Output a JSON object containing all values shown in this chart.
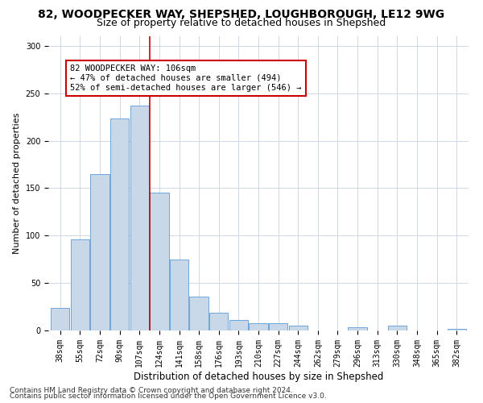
{
  "title1": "82, WOODPECKER WAY, SHEPSHED, LOUGHBOROUGH, LE12 9WG",
  "title2": "Size of property relative to detached houses in Shepshed",
  "xlabel": "Distribution of detached houses by size in Shepshed",
  "ylabel": "Number of detached properties",
  "footnote1": "Contains HM Land Registry data © Crown copyright and database right 2024.",
  "footnote2": "Contains public sector information licensed under the Open Government Licence v3.0.",
  "bin_labels": [
    "38sqm",
    "55sqm",
    "72sqm",
    "90sqm",
    "107sqm",
    "124sqm",
    "141sqm",
    "158sqm",
    "176sqm",
    "193sqm",
    "210sqm",
    "227sqm",
    "244sqm",
    "262sqm",
    "279sqm",
    "296sqm",
    "313sqm",
    "330sqm",
    "348sqm",
    "365sqm",
    "382sqm"
  ],
  "bar_heights": [
    24,
    96,
    165,
    223,
    237,
    145,
    75,
    36,
    19,
    11,
    8,
    8,
    5,
    0,
    0,
    3,
    0,
    5,
    0,
    0,
    2
  ],
  "bar_color": "#c8d8e8",
  "bar_edge_color": "#5b9bd5",
  "grid_color": "#d0d8e8",
  "annotation_text": "82 WOODPECKER WAY: 106sqm\n← 47% of detached houses are smaller (494)\n52% of semi-detached houses are larger (546) →",
  "annotation_box_edge": "#cc0000",
  "vline_x": 4.5,
  "vline_color": "#cc0000",
  "ylim": [
    0,
    310
  ],
  "yticks": [
    0,
    50,
    100,
    150,
    200,
    250,
    300
  ],
  "title1_fontsize": 10,
  "title2_fontsize": 9,
  "xlabel_fontsize": 8.5,
  "ylabel_fontsize": 8,
  "annotation_fontsize": 7.5,
  "tick_fontsize": 7,
  "footnote_fontsize": 6.5
}
